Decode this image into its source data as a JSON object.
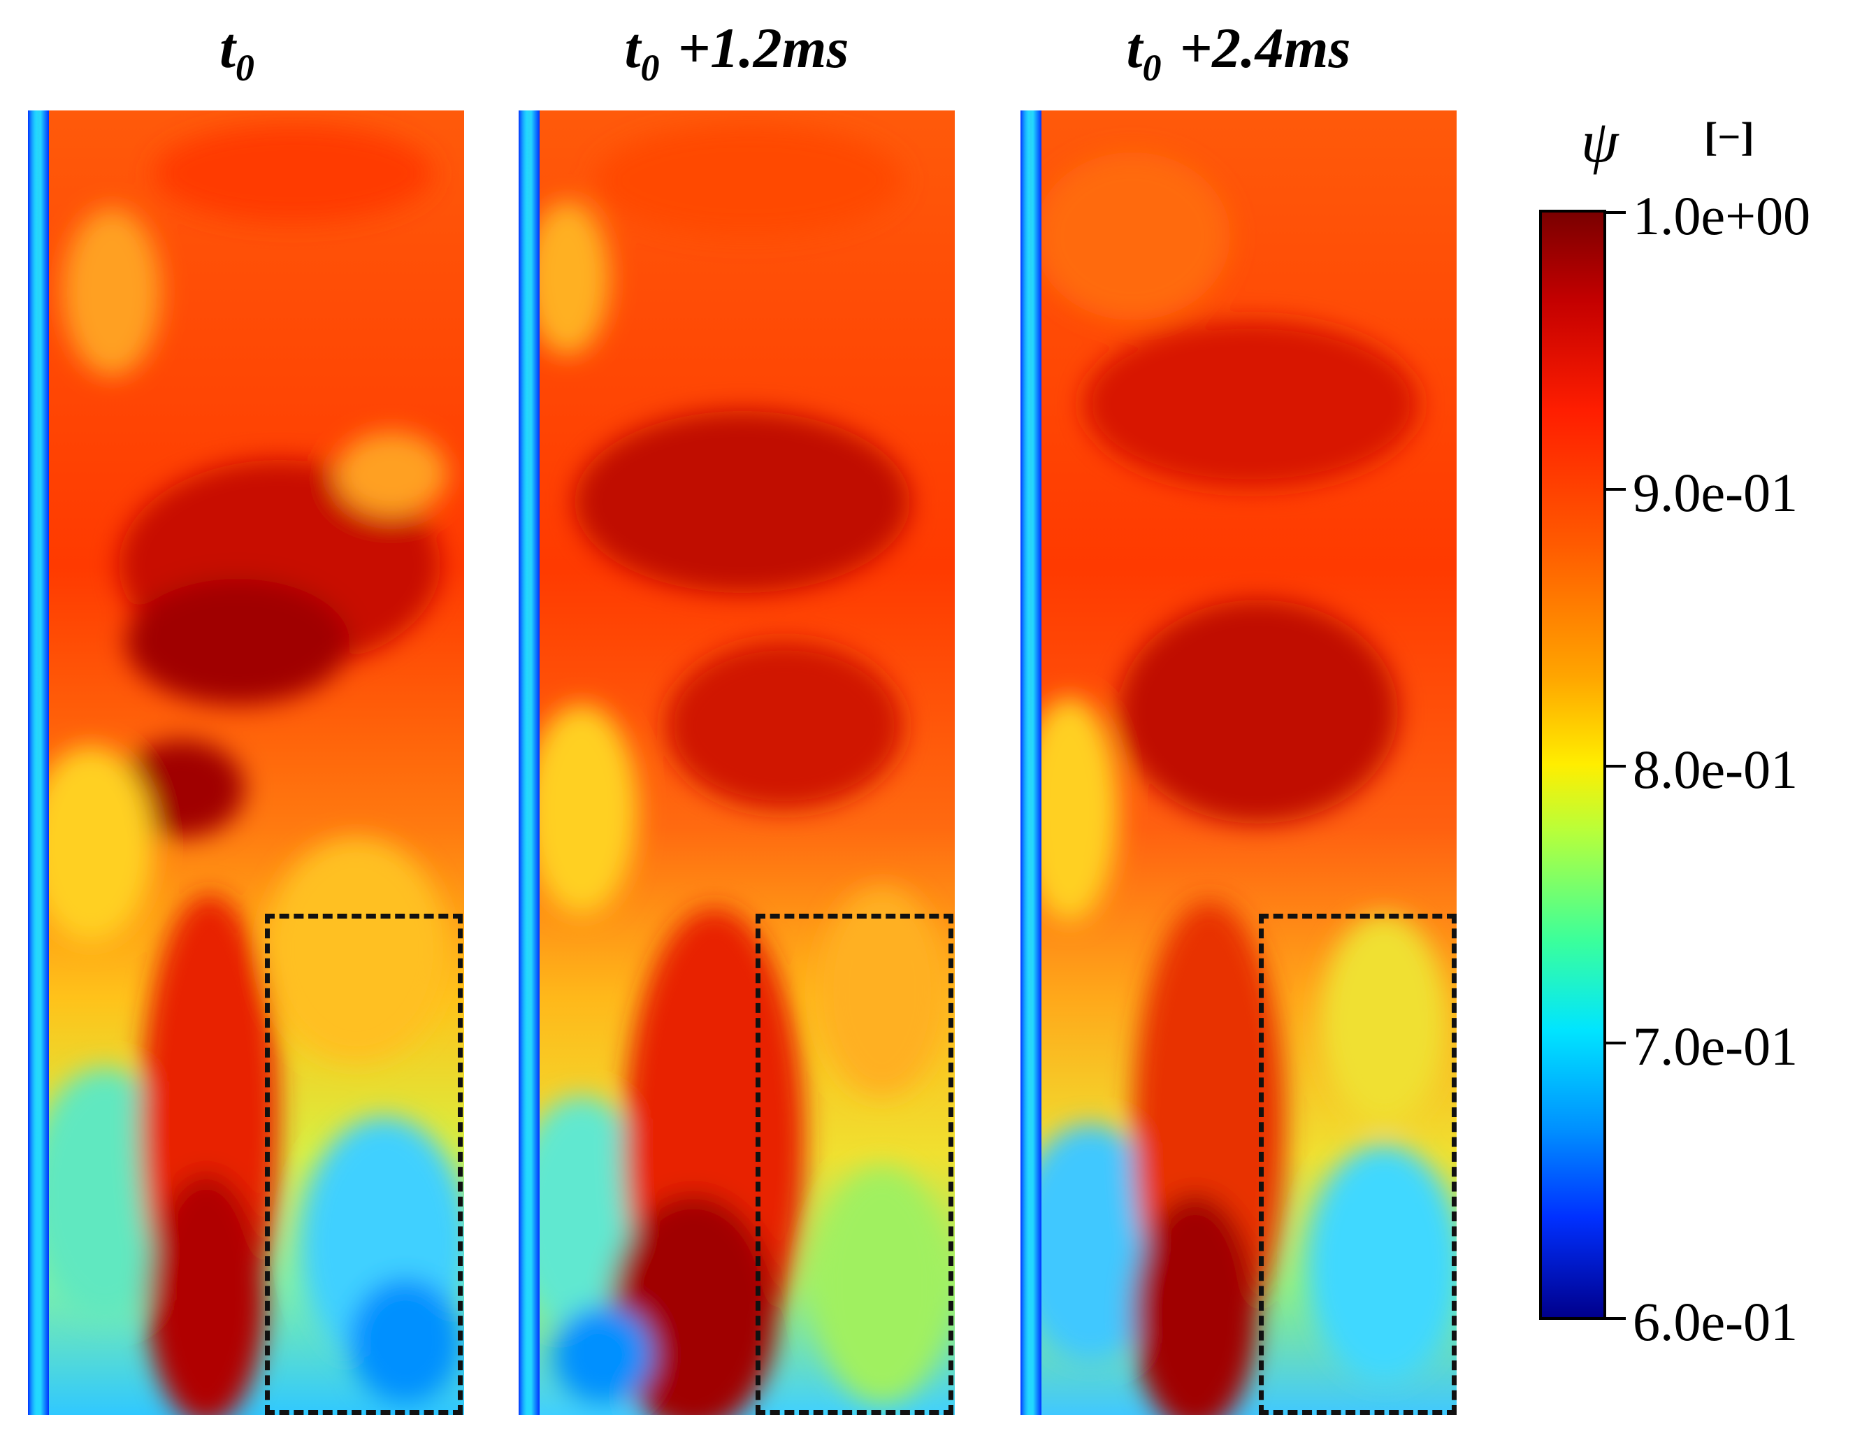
{
  "figure": {
    "panels": [
      {
        "time_base": "t",
        "time_sub": "0",
        "time_offset": ""
      },
      {
        "time_base": "t",
        "time_sub": "0",
        "time_offset": "+1.2ms"
      },
      {
        "time_base": "t",
        "time_sub": "0",
        "time_offset": "+2.4ms"
      }
    ],
    "colorbar": {
      "symbol": "ψ",
      "unit": "[−]",
      "labels": [
        "1.0e+00",
        "9.0e-01",
        "8.0e-01",
        "7.0e-01",
        "6.0e-01"
      ],
      "min": 0.6,
      "max": 1.0,
      "colors": [
        "#7a0000",
        "#c40000",
        "#ff1e00",
        "#ff5a00",
        "#ffa500",
        "#ffee00",
        "#b8ff3a",
        "#3aff9c",
        "#00e5ff",
        "#0090ff",
        "#0030ff",
        "#00008c"
      ]
    }
  }
}
